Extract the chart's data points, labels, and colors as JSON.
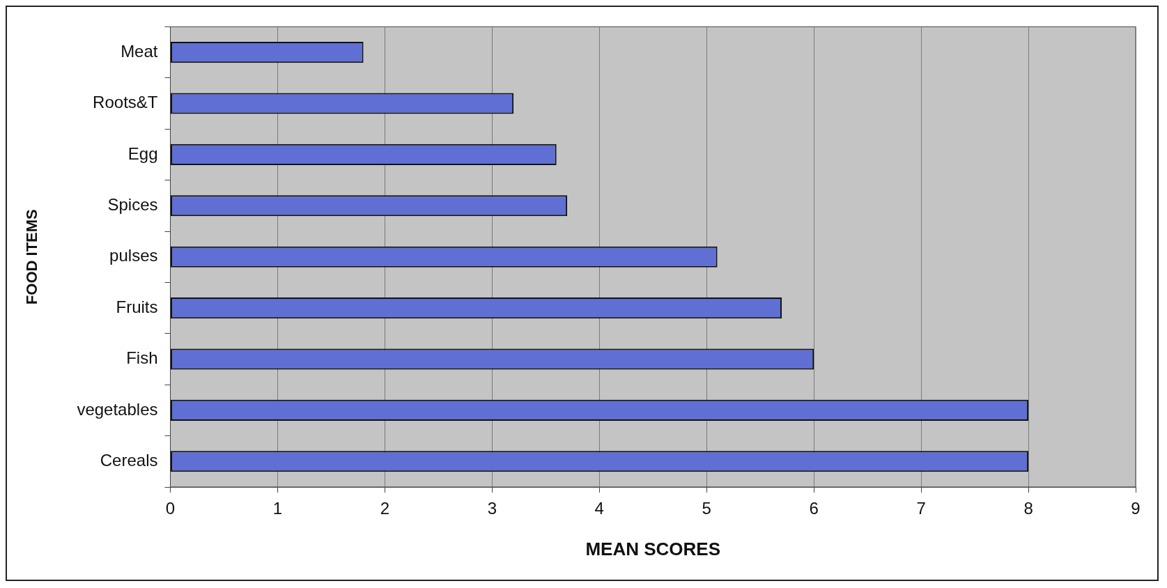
{
  "chart_data": {
    "type": "bar",
    "orientation": "horizontal",
    "xlabel": "MEAN SCORES",
    "ylabel": "FOOD ITEMS",
    "categories": [
      "Meat",
      "Roots&T",
      "Egg",
      "Spices",
      "pulses",
      "Fruits",
      "Fish",
      "vegetables",
      "Cereals"
    ],
    "values": [
      1.8,
      3.2,
      3.6,
      3.7,
      5.1,
      5.7,
      6,
      8,
      8
    ],
    "color": "#5f6fd3",
    "xlim": [
      0,
      9
    ],
    "xticks": [
      0,
      1,
      2,
      3,
      4,
      5,
      6,
      7,
      8,
      9
    ],
    "grid": "x",
    "legend": false
  }
}
